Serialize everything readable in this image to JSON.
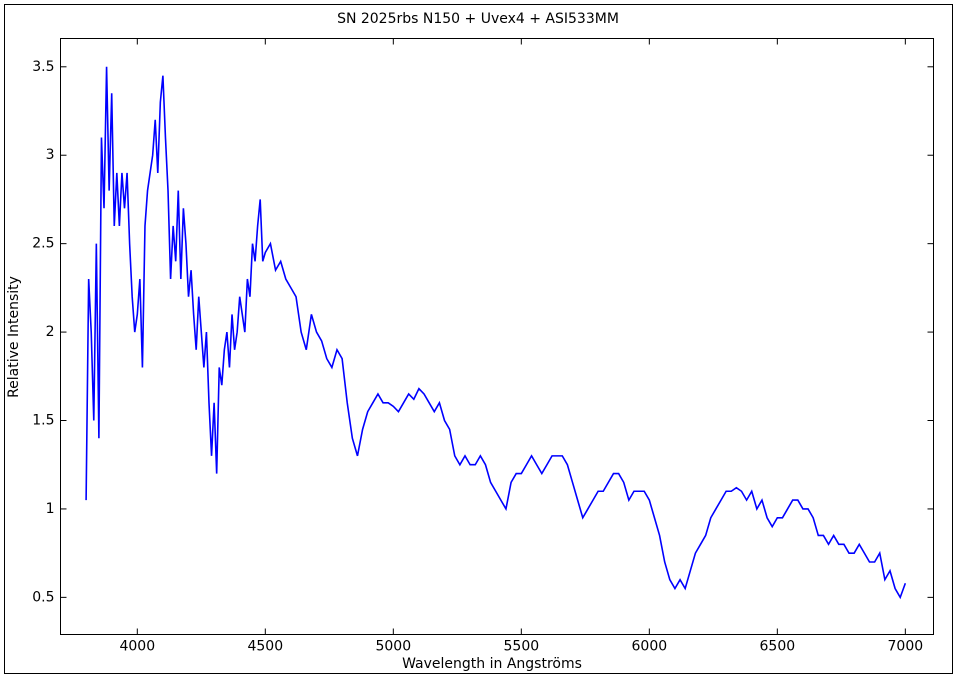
{
  "chart_data": {
    "type": "line",
    "title": "SN 2025rbs N150 + Uvex4 + ASI533MM",
    "x_label": "Wavelength in Angströms",
    "y_label": "Relative Intensity",
    "color": "#0000ff",
    "xlim": [
      3700,
      7110
    ],
    "ylim": [
      0.29,
      3.66
    ],
    "xticks": [
      4000,
      4500,
      5000,
      5500,
      6000,
      6500,
      7000
    ],
    "yticks": [
      0.5,
      1,
      1.5,
      2,
      2.5,
      3,
      3.5
    ],
    "x": [
      3800,
      3810,
      3820,
      3830,
      3840,
      3850,
      3860,
      3870,
      3880,
      3890,
      3900,
      3910,
      3920,
      3930,
      3940,
      3950,
      3960,
      3970,
      3980,
      3990,
      4000,
      4010,
      4020,
      4030,
      4040,
      4050,
      4060,
      4070,
      4080,
      4090,
      4100,
      4110,
      4120,
      4130,
      4140,
      4150,
      4160,
      4170,
      4180,
      4190,
      4200,
      4210,
      4220,
      4230,
      4240,
      4250,
      4260,
      4270,
      4280,
      4290,
      4300,
      4310,
      4320,
      4330,
      4340,
      4350,
      4360,
      4370,
      4380,
      4390,
      4400,
      4410,
      4420,
      4430,
      4440,
      4450,
      4460,
      4470,
      4480,
      4490,
      4500,
      4520,
      4540,
      4560,
      4580,
      4600,
      4620,
      4640,
      4660,
      4680,
      4700,
      4720,
      4740,
      4760,
      4780,
      4800,
      4820,
      4840,
      4860,
      4880,
      4900,
      4920,
      4940,
      4960,
      4980,
      5000,
      5020,
      5040,
      5060,
      5080,
      5100,
      5120,
      5140,
      5160,
      5180,
      5200,
      5220,
      5240,
      5260,
      5280,
      5300,
      5320,
      5340,
      5360,
      5380,
      5400,
      5420,
      5440,
      5460,
      5480,
      5500,
      5520,
      5540,
      5560,
      5580,
      5600,
      5620,
      5640,
      5660,
      5680,
      5700,
      5720,
      5740,
      5760,
      5780,
      5800,
      5820,
      5840,
      5860,
      5880,
      5900,
      5920,
      5940,
      5960,
      5980,
      6000,
      6020,
      6040,
      6060,
      6080,
      6100,
      6120,
      6140,
      6160,
      6180,
      6200,
      6220,
      6240,
      6260,
      6280,
      6300,
      6320,
      6340,
      6360,
      6380,
      6400,
      6420,
      6440,
      6460,
      6480,
      6500,
      6520,
      6540,
      6560,
      6580,
      6600,
      6620,
      6640,
      6660,
      6680,
      6700,
      6720,
      6740,
      6760,
      6780,
      6800,
      6820,
      6840,
      6860,
      6880,
      6900,
      6920,
      6940,
      6960,
      6980,
      7000
    ],
    "values": [
      1.05,
      2.3,
      2.0,
      1.5,
      2.5,
      1.4,
      3.1,
      2.7,
      3.5,
      2.8,
      3.35,
      2.6,
      2.9,
      2.6,
      2.9,
      2.7,
      2.9,
      2.5,
      2.2,
      2.0,
      2.1,
      2.3,
      1.8,
      2.6,
      2.8,
      2.9,
      3.0,
      3.2,
      2.9,
      3.3,
      3.45,
      3.1,
      2.8,
      2.3,
      2.6,
      2.4,
      2.8,
      2.3,
      2.7,
      2.5,
      2.2,
      2.35,
      2.1,
      1.9,
      2.2,
      2.0,
      1.8,
      2.0,
      1.6,
      1.3,
      1.6,
      1.2,
      1.8,
      1.7,
      1.9,
      2.0,
      1.8,
      2.1,
      1.9,
      2.0,
      2.2,
      2.1,
      2.0,
      2.3,
      2.2,
      2.5,
      2.4,
      2.6,
      2.75,
      2.4,
      2.45,
      2.5,
      2.35,
      2.4,
      2.3,
      2.25,
      2.2,
      2.0,
      1.9,
      2.1,
      2.0,
      1.95,
      1.85,
      1.8,
      1.9,
      1.85,
      1.6,
      1.4,
      1.3,
      1.45,
      1.55,
      1.6,
      1.65,
      1.6,
      1.6,
      1.58,
      1.55,
      1.6,
      1.65,
      1.62,
      1.68,
      1.65,
      1.6,
      1.55,
      1.6,
      1.5,
      1.45,
      1.3,
      1.25,
      1.3,
      1.25,
      1.25,
      1.3,
      1.25,
      1.15,
      1.1,
      1.05,
      1.0,
      1.15,
      1.2,
      1.2,
      1.25,
      1.3,
      1.25,
      1.2,
      1.25,
      1.3,
      1.3,
      1.3,
      1.25,
      1.15,
      1.05,
      0.95,
      1.0,
      1.05,
      1.1,
      1.1,
      1.15,
      1.2,
      1.2,
      1.15,
      1.05,
      1.1,
      1.1,
      1.1,
      1.05,
      0.95,
      0.85,
      0.7,
      0.6,
      0.55,
      0.6,
      0.55,
      0.65,
      0.75,
      0.8,
      0.85,
      0.95,
      1.0,
      1.05,
      1.1,
      1.1,
      1.12,
      1.1,
      1.05,
      1.1,
      1.0,
      1.05,
      0.95,
      0.9,
      0.95,
      0.95,
      1.0,
      1.05,
      1.05,
      1.0,
      1.0,
      0.95,
      0.85,
      0.85,
      0.8,
      0.85,
      0.8,
      0.8,
      0.75,
      0.75,
      0.8,
      0.75,
      0.7,
      0.7,
      0.75,
      0.6,
      0.65,
      0.55,
      0.5,
      0.58
    ]
  }
}
